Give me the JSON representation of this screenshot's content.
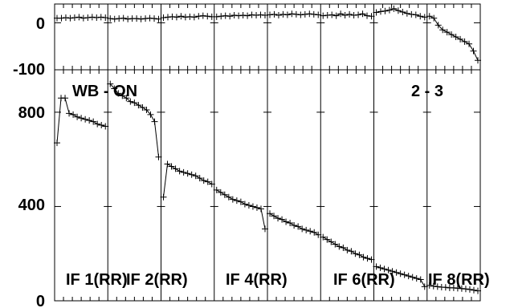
{
  "chart_data": [
    {
      "type": "scatter",
      "panel": "top",
      "title": "",
      "ylim": [
        -100,
        40
      ],
      "yticks": [
        0,
        -100
      ],
      "ytick_labels": [
        "0",
        "-100"
      ],
      "grid": false,
      "series": [
        {
          "if_index": 1,
          "values": [
            10,
            10,
            11,
            10,
            11,
            12,
            10,
            11,
            12,
            11,
            12,
            11
          ]
        },
        {
          "if_index": 2,
          "values": [
            9,
            8,
            9,
            10,
            8,
            9,
            9,
            8,
            9,
            10,
            9,
            8
          ]
        },
        {
          "if_index": 3,
          "values": [
            11,
            12,
            13,
            12,
            14,
            12,
            13,
            12,
            14,
            15,
            14,
            13
          ]
        },
        {
          "if_index": 4,
          "values": [
            13,
            14,
            15,
            14,
            16,
            15,
            16,
            15,
            17,
            16,
            17,
            16
          ]
        },
        {
          "if_index": 5,
          "values": [
            17,
            18,
            16,
            18,
            17,
            19,
            18,
            17,
            18,
            19,
            18,
            17
          ]
        },
        {
          "if_index": 6,
          "values": [
            15,
            16,
            17,
            15,
            19,
            16,
            18,
            16,
            17,
            19,
            15,
            14
          ]
        },
        {
          "if_index": 7,
          "values": [
            22,
            24,
            25,
            27,
            30,
            26,
            23,
            20,
            18,
            17,
            14,
            12
          ]
        },
        {
          "if_index": 8,
          "values": [
            14,
            10,
            -5,
            -15,
            -20,
            -25,
            -30,
            -35,
            -40,
            -45,
            -60,
            -80
          ]
        }
      ]
    },
    {
      "type": "scatter",
      "panel": "bottom",
      "title": "",
      "ylim": [
        0,
        980
      ],
      "yticks": [
        0,
        400,
        800
      ],
      "ytick_labels": [
        "0",
        "400",
        "800"
      ],
      "grid": false,
      "labels": {
        "mode": "WB - ON",
        "baseline": "2 - 3",
        "if_labels": [
          "IF 1(RR)",
          "IF 2(RR)",
          "IF 4(RR)",
          "IF 6(RR)",
          "IF 8(RR)"
        ]
      },
      "series": [
        {
          "if_index": 1,
          "values": [
            670,
            860,
            860,
            795,
            790,
            780,
            775,
            770,
            765,
            760,
            750,
            745,
            740
          ]
        },
        {
          "if_index": 2,
          "values": [
            920,
            900,
            880,
            870,
            860,
            845,
            840,
            830,
            820,
            810,
            790,
            760,
            610
          ]
        },
        {
          "if_index": 3,
          "values": [
            440,
            580,
            570,
            560,
            550,
            545,
            540,
            535,
            530,
            520,
            510,
            505,
            495
          ]
        },
        {
          "if_index": 4,
          "values": [
            470,
            460,
            450,
            440,
            430,
            425,
            420,
            410,
            405,
            400,
            395,
            390,
            305
          ]
        },
        {
          "if_index": 5,
          "values": [
            370,
            360,
            350,
            345,
            335,
            330,
            320,
            315,
            305,
            300,
            295,
            290,
            280
          ]
        },
        {
          "if_index": 6,
          "values": [
            270,
            260,
            250,
            240,
            230,
            225,
            215,
            210,
            200,
            195,
            185,
            180,
            175
          ]
        },
        {
          "if_index": 7,
          "values": [
            145,
            140,
            135,
            130,
            125,
            120,
            115,
            110,
            105,
            100,
            95,
            90,
            60
          ]
        },
        {
          "if_index": 8,
          "values": [
            65,
            62,
            60,
            58,
            57,
            55,
            55,
            53,
            52,
            50,
            48,
            45,
            42
          ]
        }
      ]
    }
  ]
}
